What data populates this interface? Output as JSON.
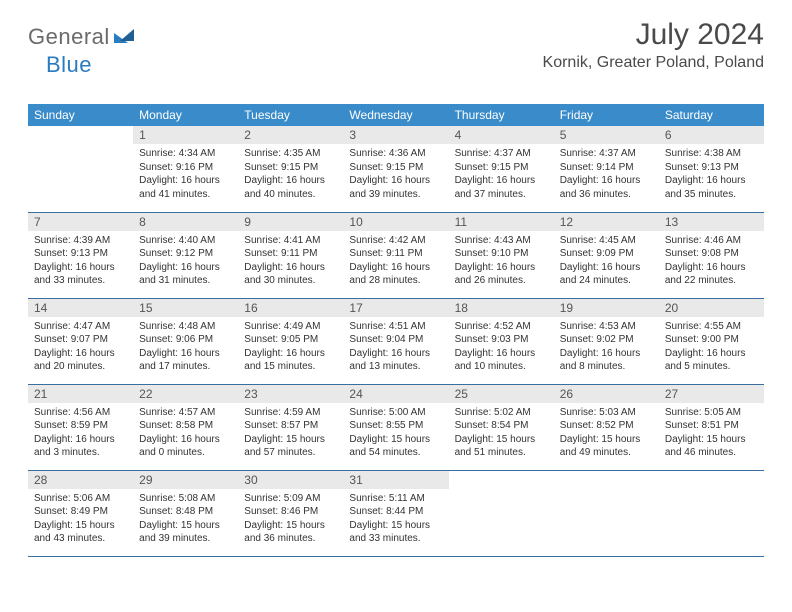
{
  "logo": {
    "part1": "General",
    "part2": "Blue"
  },
  "title": "July 2024",
  "subtitle": "Kornik, Greater Poland, Poland",
  "colors": {
    "header_bg": "#3a8bc9",
    "header_text": "#ffffff",
    "daynum_bg": "#e9e9e9",
    "row_divider": "#3a6ea0",
    "logo_gray": "#6b6b6b",
    "logo_blue": "#2a7bbf"
  },
  "weekdays": [
    "Sunday",
    "Monday",
    "Tuesday",
    "Wednesday",
    "Thursday",
    "Friday",
    "Saturday"
  ],
  "weeks": [
    [
      null,
      {
        "n": "1",
        "sr": "Sunrise: 4:34 AM",
        "ss": "Sunset: 9:16 PM",
        "d1": "Daylight: 16 hours",
        "d2": "and 41 minutes."
      },
      {
        "n": "2",
        "sr": "Sunrise: 4:35 AM",
        "ss": "Sunset: 9:15 PM",
        "d1": "Daylight: 16 hours",
        "d2": "and 40 minutes."
      },
      {
        "n": "3",
        "sr": "Sunrise: 4:36 AM",
        "ss": "Sunset: 9:15 PM",
        "d1": "Daylight: 16 hours",
        "d2": "and 39 minutes."
      },
      {
        "n": "4",
        "sr": "Sunrise: 4:37 AM",
        "ss": "Sunset: 9:15 PM",
        "d1": "Daylight: 16 hours",
        "d2": "and 37 minutes."
      },
      {
        "n": "5",
        "sr": "Sunrise: 4:37 AM",
        "ss": "Sunset: 9:14 PM",
        "d1": "Daylight: 16 hours",
        "d2": "and 36 minutes."
      },
      {
        "n": "6",
        "sr": "Sunrise: 4:38 AM",
        "ss": "Sunset: 9:13 PM",
        "d1": "Daylight: 16 hours",
        "d2": "and 35 minutes."
      }
    ],
    [
      {
        "n": "7",
        "sr": "Sunrise: 4:39 AM",
        "ss": "Sunset: 9:13 PM",
        "d1": "Daylight: 16 hours",
        "d2": "and 33 minutes."
      },
      {
        "n": "8",
        "sr": "Sunrise: 4:40 AM",
        "ss": "Sunset: 9:12 PM",
        "d1": "Daylight: 16 hours",
        "d2": "and 31 minutes."
      },
      {
        "n": "9",
        "sr": "Sunrise: 4:41 AM",
        "ss": "Sunset: 9:11 PM",
        "d1": "Daylight: 16 hours",
        "d2": "and 30 minutes."
      },
      {
        "n": "10",
        "sr": "Sunrise: 4:42 AM",
        "ss": "Sunset: 9:11 PM",
        "d1": "Daylight: 16 hours",
        "d2": "and 28 minutes."
      },
      {
        "n": "11",
        "sr": "Sunrise: 4:43 AM",
        "ss": "Sunset: 9:10 PM",
        "d1": "Daylight: 16 hours",
        "d2": "and 26 minutes."
      },
      {
        "n": "12",
        "sr": "Sunrise: 4:45 AM",
        "ss": "Sunset: 9:09 PM",
        "d1": "Daylight: 16 hours",
        "d2": "and 24 minutes."
      },
      {
        "n": "13",
        "sr": "Sunrise: 4:46 AM",
        "ss": "Sunset: 9:08 PM",
        "d1": "Daylight: 16 hours",
        "d2": "and 22 minutes."
      }
    ],
    [
      {
        "n": "14",
        "sr": "Sunrise: 4:47 AM",
        "ss": "Sunset: 9:07 PM",
        "d1": "Daylight: 16 hours",
        "d2": "and 20 minutes."
      },
      {
        "n": "15",
        "sr": "Sunrise: 4:48 AM",
        "ss": "Sunset: 9:06 PM",
        "d1": "Daylight: 16 hours",
        "d2": "and 17 minutes."
      },
      {
        "n": "16",
        "sr": "Sunrise: 4:49 AM",
        "ss": "Sunset: 9:05 PM",
        "d1": "Daylight: 16 hours",
        "d2": "and 15 minutes."
      },
      {
        "n": "17",
        "sr": "Sunrise: 4:51 AM",
        "ss": "Sunset: 9:04 PM",
        "d1": "Daylight: 16 hours",
        "d2": "and 13 minutes."
      },
      {
        "n": "18",
        "sr": "Sunrise: 4:52 AM",
        "ss": "Sunset: 9:03 PM",
        "d1": "Daylight: 16 hours",
        "d2": "and 10 minutes."
      },
      {
        "n": "19",
        "sr": "Sunrise: 4:53 AM",
        "ss": "Sunset: 9:02 PM",
        "d1": "Daylight: 16 hours",
        "d2": "and 8 minutes."
      },
      {
        "n": "20",
        "sr": "Sunrise: 4:55 AM",
        "ss": "Sunset: 9:00 PM",
        "d1": "Daylight: 16 hours",
        "d2": "and 5 minutes."
      }
    ],
    [
      {
        "n": "21",
        "sr": "Sunrise: 4:56 AM",
        "ss": "Sunset: 8:59 PM",
        "d1": "Daylight: 16 hours",
        "d2": "and 3 minutes."
      },
      {
        "n": "22",
        "sr": "Sunrise: 4:57 AM",
        "ss": "Sunset: 8:58 PM",
        "d1": "Daylight: 16 hours",
        "d2": "and 0 minutes."
      },
      {
        "n": "23",
        "sr": "Sunrise: 4:59 AM",
        "ss": "Sunset: 8:57 PM",
        "d1": "Daylight: 15 hours",
        "d2": "and 57 minutes."
      },
      {
        "n": "24",
        "sr": "Sunrise: 5:00 AM",
        "ss": "Sunset: 8:55 PM",
        "d1": "Daylight: 15 hours",
        "d2": "and 54 minutes."
      },
      {
        "n": "25",
        "sr": "Sunrise: 5:02 AM",
        "ss": "Sunset: 8:54 PM",
        "d1": "Daylight: 15 hours",
        "d2": "and 51 minutes."
      },
      {
        "n": "26",
        "sr": "Sunrise: 5:03 AM",
        "ss": "Sunset: 8:52 PM",
        "d1": "Daylight: 15 hours",
        "d2": "and 49 minutes."
      },
      {
        "n": "27",
        "sr": "Sunrise: 5:05 AM",
        "ss": "Sunset: 8:51 PM",
        "d1": "Daylight: 15 hours",
        "d2": "and 46 minutes."
      }
    ],
    [
      {
        "n": "28",
        "sr": "Sunrise: 5:06 AM",
        "ss": "Sunset: 8:49 PM",
        "d1": "Daylight: 15 hours",
        "d2": "and 43 minutes."
      },
      {
        "n": "29",
        "sr": "Sunrise: 5:08 AM",
        "ss": "Sunset: 8:48 PM",
        "d1": "Daylight: 15 hours",
        "d2": "and 39 minutes."
      },
      {
        "n": "30",
        "sr": "Sunrise: 5:09 AM",
        "ss": "Sunset: 8:46 PM",
        "d1": "Daylight: 15 hours",
        "d2": "and 36 minutes."
      },
      {
        "n": "31",
        "sr": "Sunrise: 5:11 AM",
        "ss": "Sunset: 8:44 PM",
        "d1": "Daylight: 15 hours",
        "d2": "and 33 minutes."
      },
      null,
      null,
      null
    ]
  ]
}
